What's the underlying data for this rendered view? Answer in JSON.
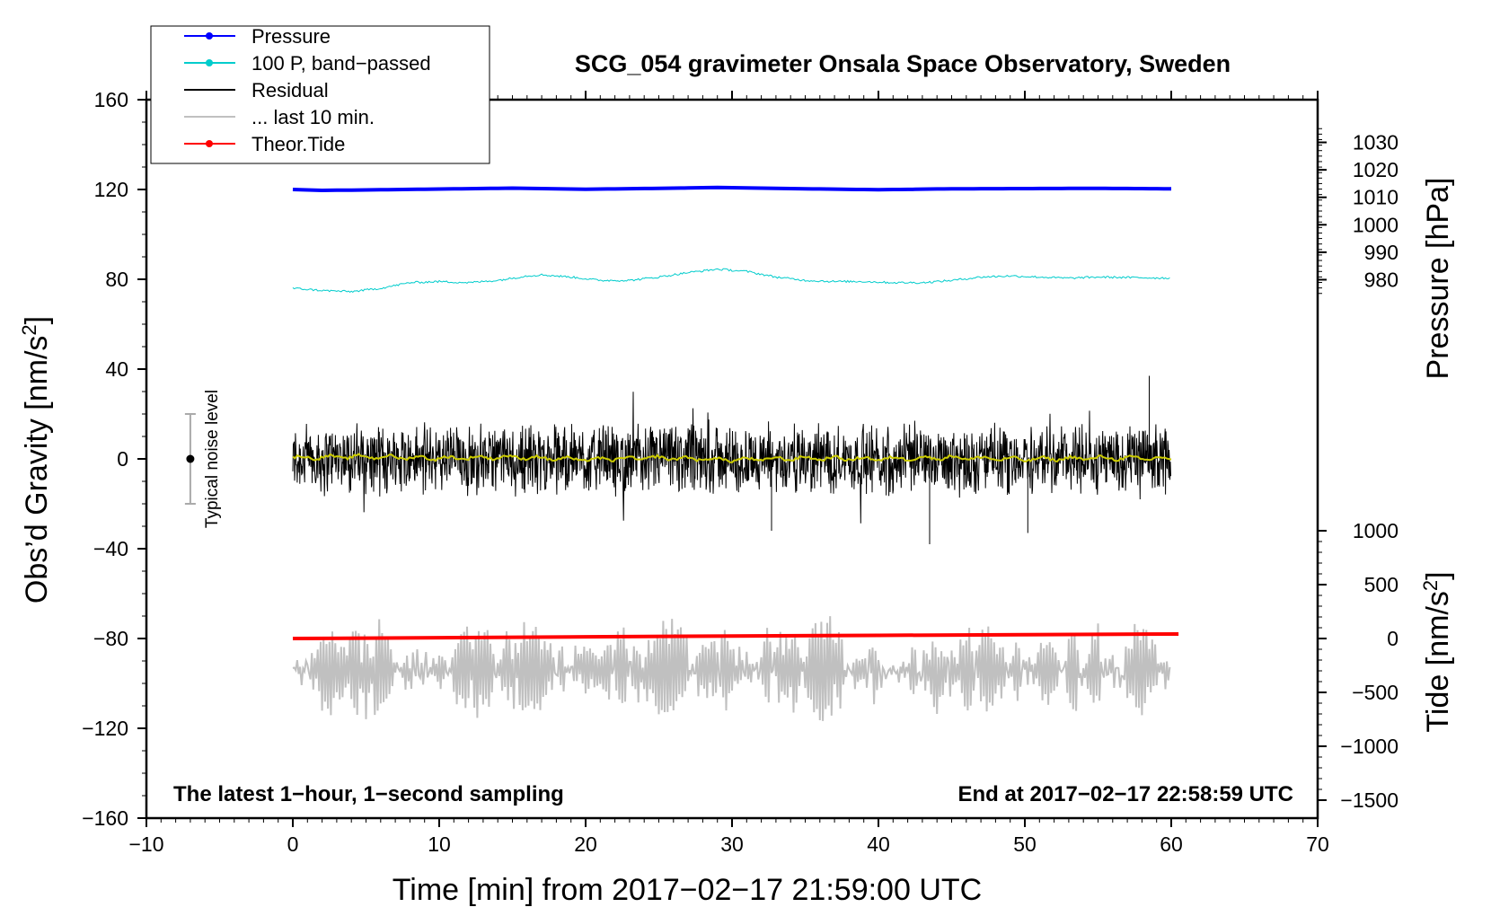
{
  "chart_data": {
    "type": "line",
    "title": "SCG_054 gravimeter Onsala Space Observatory, Sweden",
    "xlabel": "Time [min] from 2017−02−17 21:59:00 UTC",
    "ylabel_left": "Obs’d Gravity [nm/s",
    "ylabel_left_sup": "2",
    "ylabel_left_close": "]",
    "ylabel_right_pressure": "Pressure [hPa]",
    "ylabel_right_tide": "Tide [nm/s",
    "ylabel_right_tide_sup": "2",
    "ylabel_right_tide_close": "]",
    "xlim": [
      -10,
      70
    ],
    "ylim_left": [
      -160,
      160
    ],
    "xticks": [
      {
        "value": -10,
        "label": "−10"
      },
      {
        "value": 0,
        "label": "0"
      },
      {
        "value": 10,
        "label": "10"
      },
      {
        "value": 20,
        "label": "20"
      },
      {
        "value": 30,
        "label": "30"
      },
      {
        "value": 40,
        "label": "40"
      },
      {
        "value": 50,
        "label": "50"
      },
      {
        "value": 60,
        "label": "60"
      },
      {
        "value": 70,
        "label": "70"
      }
    ],
    "yticks_left": [
      {
        "value": 160,
        "label": "160"
      },
      {
        "value": 120,
        "label": "120"
      },
      {
        "value": 80,
        "label": "80"
      },
      {
        "value": 40,
        "label": "40"
      },
      {
        "value": 0,
        "label": "0"
      },
      {
        "value": -40,
        "label": "−40"
      },
      {
        "value": -80,
        "label": "−80"
      },
      {
        "value": -120,
        "label": "−120"
      },
      {
        "value": -160,
        "label": "−160"
      }
    ],
    "pressure_axis": {
      "left_equiv": [
        73.7,
        147.1
      ],
      "ticks": [
        {
          "value": 980,
          "label": "980"
        },
        {
          "value": 990,
          "label": "990"
        },
        {
          "value": 1000,
          "label": "1000"
        },
        {
          "value": 1010,
          "label": "1010"
        },
        {
          "value": 1020,
          "label": "1020"
        },
        {
          "value": 1030,
          "label": "1030"
        }
      ]
    },
    "tide_axis": {
      "left_equiv": [
        -80,
        0
      ],
      "ticks": [
        {
          "value": 1000,
          "label": "1000"
        },
        {
          "value": 500,
          "label": "500"
        },
        {
          "value": 0,
          "label": "0"
        },
        {
          "value": -500,
          "label": "−500"
        },
        {
          "value": -1000,
          "label": "−1000"
        },
        {
          "value": -1500,
          "label": "−1500"
        }
      ]
    },
    "series": [
      {
        "name": "Pressure",
        "color": "#0000ff",
        "axis": "left",
        "x": [
          0,
          2,
          5,
          10,
          15,
          20,
          25,
          29,
          35,
          40,
          45,
          50,
          55,
          60
        ],
        "y": [
          120.0,
          119.6,
          119.8,
          120.2,
          120.6,
          120.1,
          120.5,
          120.9,
          120.3,
          119.9,
          120.3,
          120.4,
          120.5,
          120.3
        ]
      },
      {
        "name": "100 P, band−passed",
        "color": "#00cccc",
        "axis": "left",
        "x": [
          0,
          2,
          4,
          6,
          8,
          10,
          12,
          14,
          16,
          17,
          19,
          21,
          23,
          25,
          27,
          29,
          31,
          33,
          35,
          37,
          39,
          41,
          43,
          45,
          47,
          49,
          51,
          53,
          55,
          57,
          60
        ],
        "y": [
          76,
          75,
          74.5,
          76,
          78.5,
          79,
          78.5,
          79.5,
          81.5,
          82,
          81,
          79.5,
          79.5,
          81,
          83,
          84.5,
          83.5,
          81,
          79.5,
          79,
          79,
          78.5,
          78.5,
          79.5,
          81,
          81.5,
          81,
          80.5,
          81,
          80.8,
          80.5
        ]
      },
      {
        "name": "Residual",
        "color": "#000000",
        "axis": "left",
        "x": [
          0,
          60
        ],
        "y": [
          0,
          0
        ],
        "noise_amplitude": 12,
        "notable_extrema": [
          {
            "x": 58.5,
            "y": 37
          },
          {
            "x": 43.5,
            "y": -38
          },
          {
            "x": 50.2,
            "y": -33
          },
          {
            "x": 32.7,
            "y": -32
          }
        ]
      },
      {
        "name": "Residual, smoothed",
        "color": "#cccc00",
        "axis": "left",
        "x": [
          0,
          5,
          10,
          15,
          20,
          25,
          30,
          35,
          40,
          45,
          50,
          55,
          60
        ],
        "y": [
          0.5,
          1.0,
          0.3,
          0.8,
          -0.3,
          0.5,
          -0.4,
          0.3,
          0.0,
          0.6,
          -0.2,
          0.4,
          0.1
        ]
      },
      {
        "name": "... last 10 min.",
        "color": "#c0c0c0",
        "axis": "left",
        "x": [
          0,
          60
        ],
        "y": [
          -96,
          -96
        ],
        "oscillation_range": [
          -128,
          -60
        ]
      },
      {
        "name": "Theor.Tide",
        "color": "#ff0000",
        "axis": "tide",
        "x": [
          0,
          10,
          20,
          30,
          40,
          50,
          60.5
        ],
        "y": [
          -25,
          -20,
          -15,
          -10,
          -6,
          -2,
          2
        ]
      }
    ],
    "legend": {
      "placement": "top-left",
      "entries": [
        {
          "label": "Pressure",
          "color": "#0000ff",
          "marker": true
        },
        {
          "label": "100 P, band−passed",
          "color": "#00cccc",
          "marker": true
        },
        {
          "label": "Residual",
          "color": "#000000",
          "marker": false
        },
        {
          "label": "... last 10 min.",
          "color": "#c0c0c0",
          "marker": false
        },
        {
          "label": "Theor.Tide",
          "color": "#ff0000",
          "marker": true
        }
      ]
    },
    "noise_level": {
      "label": "Typical noise level",
      "x": -7,
      "y": 0,
      "error": 20
    },
    "annotations": {
      "bottom_left": "The latest 1−hour, 1−second sampling",
      "bottom_right": "End at 2017−02−17 22:58:59 UTC"
    },
    "grid": false
  }
}
